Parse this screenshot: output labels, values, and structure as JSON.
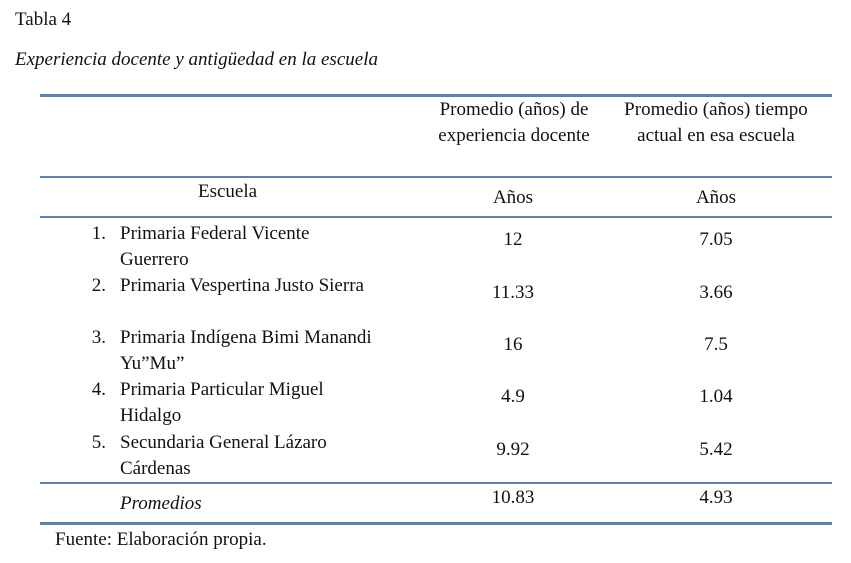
{
  "caption": {
    "label": "Tabla 4",
    "title": "Experiencia docente y antigüedad en la escuela"
  },
  "table": {
    "header": {
      "col1": "Promedio (años) de experiencia docente",
      "col2": "Promedio (años) tiempo actual en esa escuela",
      "school_label": "Escuela",
      "unit_col1": "Años",
      "unit_col2": "Años"
    },
    "rows": [
      {
        "num": "1.",
        "name": "Primaria Federal Vicente Guerrero",
        "experience": "12",
        "tenure": "7.05"
      },
      {
        "num": "2.",
        "name": "Primaria Vespertina Justo Sierra",
        "experience": "11.33",
        "tenure": "3.66"
      },
      {
        "num": "3.",
        "name": "Primaria Indígena Bimi Manandi Yu”Mu”",
        "experience": "16",
        "tenure": "7.5"
      },
      {
        "num": "4.",
        "name": "Primaria Particular Miguel Hidalgo",
        "experience": "4.9",
        "tenure": "1.04"
      },
      {
        "num": "5.",
        "name": "Secundaria General Lázaro Cárdenas",
        "experience": "9.92",
        "tenure": "5.42"
      }
    ],
    "averages": {
      "label": "Promedios",
      "experience": "10.83",
      "tenure": "4.93"
    }
  },
  "source_note": "Fuente: Elaboración propia.",
  "colors": {
    "rule": "#5b80ae",
    "text": "#111111"
  }
}
